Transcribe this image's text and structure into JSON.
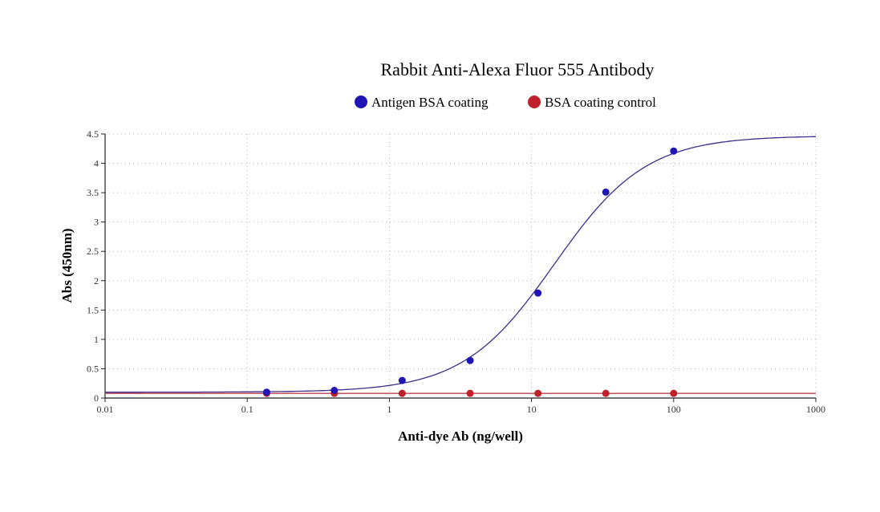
{
  "chart_data": {
    "type": "scatter",
    "title": "Rabbit Anti-Alexa Fluor 555 Antibody",
    "xlabel": "Anti-dye Ab (ng/well)",
    "ylabel": "Abs (450nm)",
    "xscale": "log",
    "xlim": [
      0.01,
      1000
    ],
    "ylim": [
      0,
      4.5
    ],
    "xticks": [
      "0.01",
      "0.1",
      "1",
      "10",
      "100",
      "1000"
    ],
    "yticks": [
      "0",
      "0.5",
      "1",
      "1.5",
      "2",
      "2.5",
      "3",
      "3.5",
      "4",
      "4.5"
    ],
    "grid": true,
    "legend_position": "top",
    "series": [
      {
        "name": "Antigen BSA coating",
        "color": "#1f14b4",
        "line_color": "#3a2f8c",
        "x": [
          0.137,
          0.41,
          1.23,
          3.7,
          11.1,
          33.3,
          100
        ],
        "y": [
          0.1,
          0.13,
          0.3,
          0.64,
          1.79,
          3.51,
          4.21
        ],
        "fit": {
          "model": "4PL",
          "bottom": 0.1,
          "top": 4.47,
          "ec50": 14.5,
          "hill": 1.35
        }
      },
      {
        "name": "BSA coating control",
        "color": "#c0202a",
        "line_color": "#c0404a",
        "x": [
          0.137,
          0.41,
          1.23,
          3.7,
          11.1,
          33.3,
          100
        ],
        "y": [
          0.08,
          0.08,
          0.08,
          0.08,
          0.08,
          0.08,
          0.08
        ],
        "fit": {
          "model": "flat",
          "value": 0.08
        }
      }
    ]
  }
}
